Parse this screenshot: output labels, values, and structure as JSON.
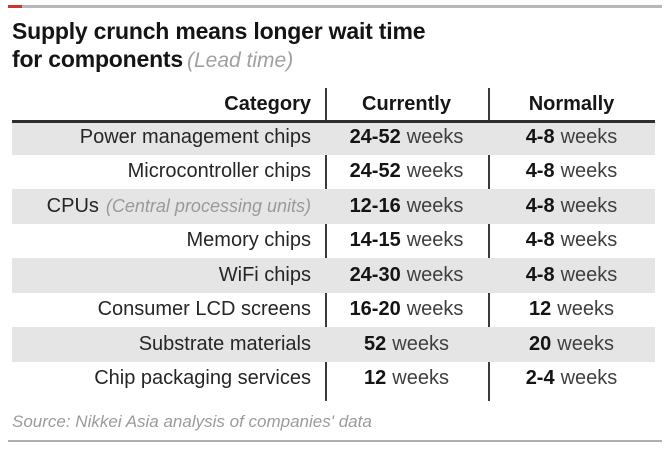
{
  "colors": {
    "accent_red": "#c8372d",
    "row_shade": "#e5e5e5",
    "rule_gray": "#b7b7b7",
    "divider_dark": "#3a3a3a",
    "text_dark": "#141414",
    "text_gray": "#9b9b9b"
  },
  "header": {
    "title_line1": "Supply crunch means longer wait time",
    "title_line2": "for components",
    "title_note": "(Lead time)"
  },
  "table": {
    "columns": [
      "Category",
      "Currently",
      "Normally"
    ],
    "rows": [
      {
        "category": "Power management chips",
        "note": "",
        "currently": "24-52",
        "currently_unit": "weeks",
        "normally": "4-8",
        "normally_unit": "weeks"
      },
      {
        "category": "Microcontroller chips",
        "note": "",
        "currently": "24-52",
        "currently_unit": "weeks",
        "normally": "4-8",
        "normally_unit": "weeks"
      },
      {
        "category": "CPUs",
        "note": "(Central processing units)",
        "currently": "12-16",
        "currently_unit": "weeks",
        "normally": "4-8",
        "normally_unit": "weeks"
      },
      {
        "category": "Memory chips",
        "note": "",
        "currently": "14-15",
        "currently_unit": "weeks",
        "normally": "4-8",
        "normally_unit": "weeks"
      },
      {
        "category": "WiFi chips",
        "note": "",
        "currently": "24-30",
        "currently_unit": "weeks",
        "normally": "4-8",
        "normally_unit": "weeks"
      },
      {
        "category": "Consumer LCD screens",
        "note": "",
        "currently": "16-20",
        "currently_unit": "weeks",
        "normally": "12",
        "normally_unit": "weeks"
      },
      {
        "category": "Substrate materials",
        "note": "",
        "currently": "52",
        "currently_unit": "weeks",
        "normally": "20",
        "normally_unit": "weeks"
      },
      {
        "category": "Chip packaging services",
        "note": "",
        "currently": "12",
        "currently_unit": "weeks",
        "normally": "2-4",
        "normally_unit": "weeks"
      }
    ]
  },
  "footer": {
    "source": "Source: Nikkei Asia analysis of companies' data"
  },
  "chart_data": {
    "type": "table",
    "title": "Supply crunch means longer wait time for components",
    "subtitle": "(Lead time)",
    "columns": [
      "Category",
      "Currently",
      "Normally"
    ],
    "rows": [
      [
        "Power management chips",
        "24-52 weeks",
        "4-8 weeks"
      ],
      [
        "Microcontroller chips",
        "24-52 weeks",
        "4-8 weeks"
      ],
      [
        "CPUs (Central processing units)",
        "12-16 weeks",
        "4-8 weeks"
      ],
      [
        "Memory chips",
        "14-15 weeks",
        "4-8 weeks"
      ],
      [
        "WiFi chips",
        "24-30 weeks",
        "4-8 weeks"
      ],
      [
        "Consumer LCD screens",
        "16-20 weeks",
        "12 weeks"
      ],
      [
        "Substrate materials",
        "52 weeks",
        "20 weeks"
      ],
      [
        "Chip packaging services",
        "12 weeks",
        "2-4 weeks"
      ]
    ],
    "source": "Source: Nikkei Asia analysis of companies' data",
    "layout": {
      "shaded_rows": [
        1,
        3,
        5,
        7
      ],
      "column_dividers": true,
      "header_rule": true
    }
  }
}
